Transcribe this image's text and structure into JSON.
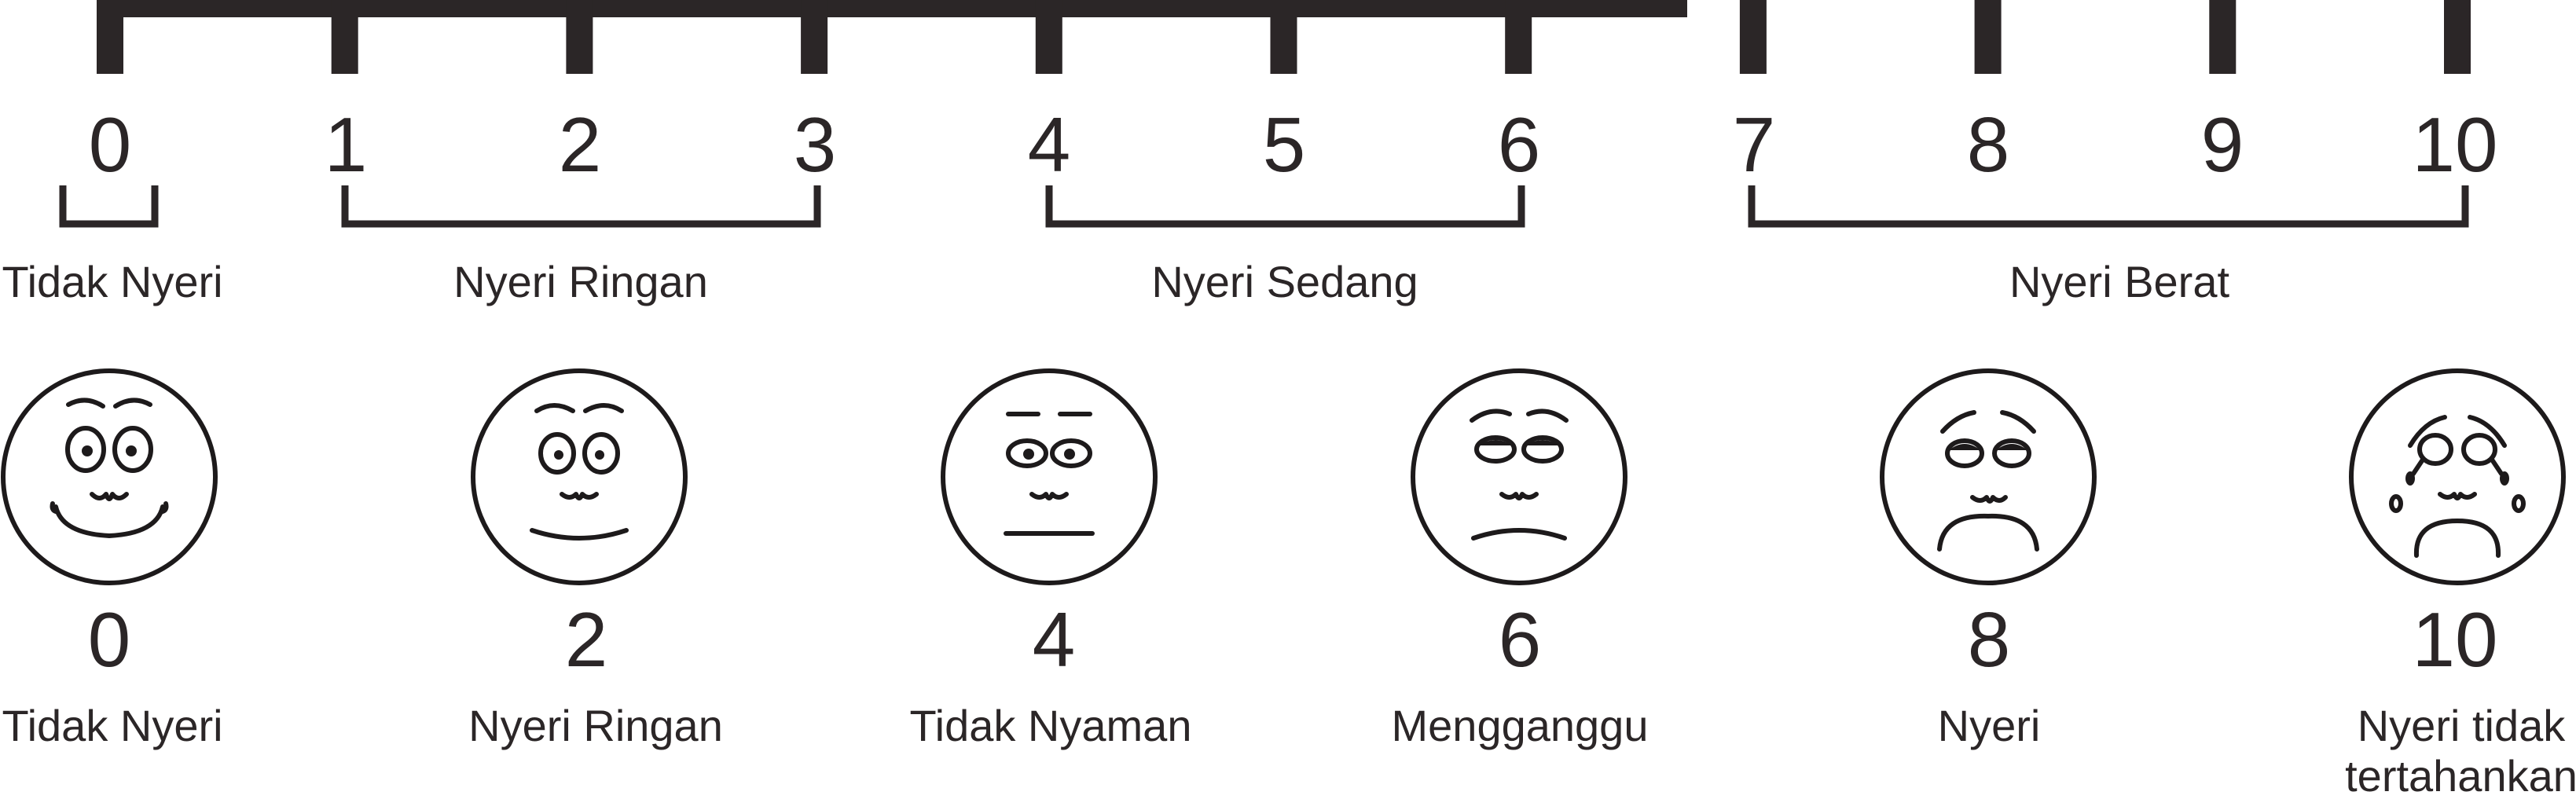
{
  "scale_numbers": [
    "0",
    "1",
    "2",
    "3",
    "4",
    "5",
    "6",
    "7",
    "8",
    "9",
    "10"
  ],
  "categories": [
    {
      "label": "Tidak Nyeri",
      "range": [
        0,
        0
      ]
    },
    {
      "label": "Nyeri Ringan",
      "range": [
        1,
        3
      ]
    },
    {
      "label": "Nyeri Sedang",
      "range": [
        4,
        6
      ]
    },
    {
      "label": "Nyeri Berat",
      "range": [
        7,
        10
      ]
    }
  ],
  "faces": [
    {
      "score": "0",
      "label_lines": [
        "Tidak Nyeri"
      ],
      "expression": "big-smile"
    },
    {
      "score": "2",
      "label_lines": [
        "Nyeri Ringan"
      ],
      "expression": "smile"
    },
    {
      "score": "4",
      "label_lines": [
        "Tidak Nyaman"
      ],
      "expression": "neutral"
    },
    {
      "score": "6",
      "label_lines": [
        "Mengganggu"
      ],
      "expression": "slight-frown"
    },
    {
      "score": "8",
      "label_lines": [
        "Nyeri"
      ],
      "expression": "frown"
    },
    {
      "score": "10",
      "label_lines": [
        "Nyeri tidak",
        "tertahankan"
      ],
      "expression": "crying"
    }
  ],
  "colors": {
    "ink": "#2b2627",
    "background": "#ffffff"
  }
}
